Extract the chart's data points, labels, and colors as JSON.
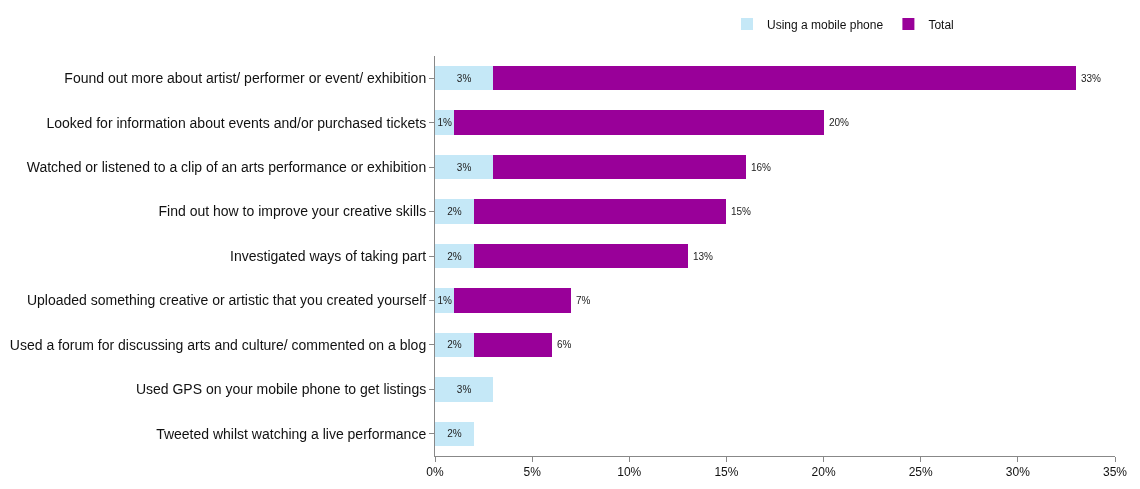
{
  "chart_data": {
    "type": "bar",
    "orientation": "horizontal",
    "stacked": true,
    "categories": [
      "Found out more about artist/ performer or event/ exhibition",
      "Looked for information about events and/or purchased tickets",
      "Watched or listened to a clip of an arts performance or exhibition",
      "Find out how to improve your creative skills",
      "Investigated ways of taking part",
      "Uploaded something creative or artistic that you created yourself",
      "Used a forum for discussing arts and culture/ commented on a blog",
      "Used GPS on your mobile phone to get listings",
      "Tweeted whilst watching a live performance"
    ],
    "series": [
      {
        "name": "Using a mobile phone",
        "color": "#c5e8f7",
        "values": [
          3,
          1,
          3,
          2,
          2,
          1,
          2,
          3,
          2
        ],
        "value_labels": [
          "3%",
          "1%",
          "3%",
          "2%",
          "2%",
          "1%",
          "2%",
          "3%",
          "2%"
        ]
      },
      {
        "name": "Total",
        "color": "#990099",
        "values": [
          30,
          19,
          13,
          13,
          11,
          6,
          4,
          null,
          null
        ]
      }
    ],
    "totals": [
      "33%",
      "20%",
      "16%",
      "15%",
      "13%",
      "7%",
      "6%",
      null,
      null
    ],
    "xlim": [
      0,
      35
    ],
    "xticks": [
      {
        "value": 0,
        "label": "0%"
      },
      {
        "value": 5,
        "label": "5%"
      },
      {
        "value": 10,
        "label": "10%"
      },
      {
        "value": 15,
        "label": "15%"
      },
      {
        "value": 20,
        "label": "20%"
      },
      {
        "value": 25,
        "label": "25%"
      },
      {
        "value": 30,
        "label": "30%"
      },
      {
        "value": 35,
        "label": "35%"
      }
    ],
    "legend": "top"
  }
}
